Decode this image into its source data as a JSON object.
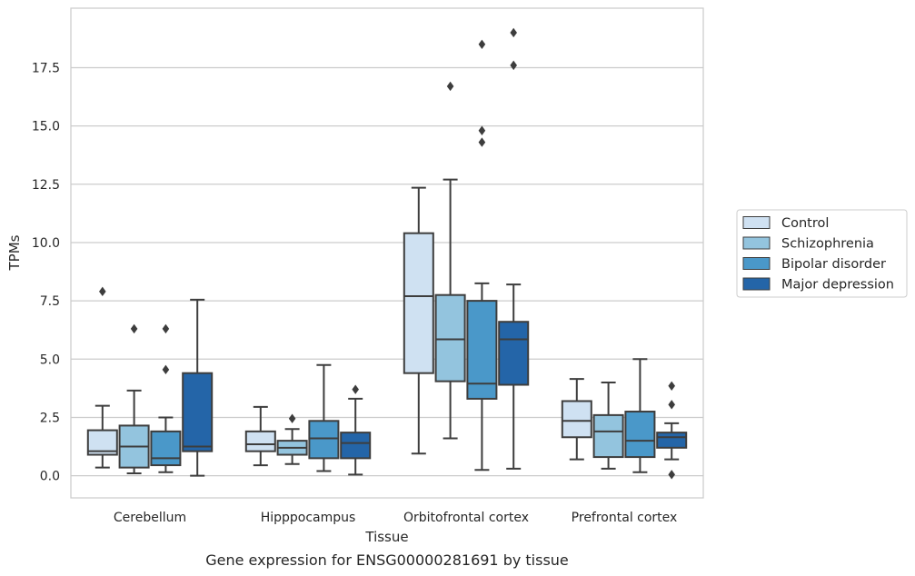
{
  "chart_data": {
    "type": "box",
    "xlabel": "Tissue",
    "ylabel": "TPMs",
    "caption": "Gene expression for ENSG00000281691 by tissue",
    "ylim": [
      -0.95,
      20.05
    ],
    "yticks": [
      0.0,
      2.5,
      5.0,
      7.5,
      10.0,
      12.5,
      15.0,
      17.5
    ],
    "ytick_labels": [
      "0.0",
      "2.5",
      "5.0",
      "7.5",
      "10.0",
      "12.5",
      "15.0",
      "17.5"
    ],
    "grid": "horizontal",
    "legend_position": "right",
    "categories": [
      "Cerebellum",
      "Hipppocampus",
      "Orbitofrontal cortex",
      "Prefrontal cortex"
    ],
    "series": [
      {
        "name": "Control",
        "color": "#cfe1f2",
        "boxes": [
          {
            "whislo": 0.35,
            "q1": 0.9,
            "median": 1.05,
            "q3": 1.95,
            "whishi": 3.0,
            "fliers": [
              7.9
            ]
          },
          {
            "whislo": 0.45,
            "q1": 1.05,
            "median": 1.35,
            "q3": 1.9,
            "whishi": 2.95,
            "fliers": []
          },
          {
            "whislo": 0.95,
            "q1": 4.4,
            "median": 7.7,
            "q3": 10.4,
            "whishi": 12.35,
            "fliers": []
          },
          {
            "whislo": 0.7,
            "q1": 1.65,
            "median": 2.35,
            "q3": 3.2,
            "whishi": 4.15,
            "fliers": []
          }
        ]
      },
      {
        "name": "Schizophrenia",
        "color": "#93c4de",
        "boxes": [
          {
            "whislo": 0.1,
            "q1": 0.35,
            "median": 1.25,
            "q3": 2.15,
            "whishi": 3.65,
            "fliers": [
              6.3
            ]
          },
          {
            "whislo": 0.5,
            "q1": 0.9,
            "median": 1.2,
            "q3": 1.5,
            "whishi": 2.0,
            "fliers": [
              2.45
            ]
          },
          {
            "whislo": 1.6,
            "q1": 4.05,
            "median": 5.85,
            "q3": 7.75,
            "whishi": 12.7,
            "fliers": [
              16.7
            ]
          },
          {
            "whislo": 0.3,
            "q1": 0.8,
            "median": 1.9,
            "q3": 2.6,
            "whishi": 4.0,
            "fliers": []
          }
        ]
      },
      {
        "name": "Bipolar disorder",
        "color": "#4a98c9",
        "boxes": [
          {
            "whislo": 0.15,
            "q1": 0.45,
            "median": 0.75,
            "q3": 1.9,
            "whishi": 2.5,
            "fliers": [
              4.55,
              6.3
            ]
          },
          {
            "whislo": 0.2,
            "q1": 0.75,
            "median": 1.6,
            "q3": 2.35,
            "whishi": 4.75,
            "fliers": []
          },
          {
            "whislo": 0.25,
            "q1": 3.3,
            "median": 3.95,
            "q3": 7.5,
            "whishi": 8.25,
            "fliers": [
              14.3,
              14.8,
              18.5
            ]
          },
          {
            "whislo": 0.15,
            "q1": 0.8,
            "median": 1.5,
            "q3": 2.75,
            "whishi": 5.0,
            "fliers": []
          }
        ]
      },
      {
        "name": "Major depression",
        "color": "#2465a8",
        "boxes": [
          {
            "whislo": 0.0,
            "q1": 1.05,
            "median": 1.25,
            "q3": 4.4,
            "whishi": 7.55,
            "fliers": []
          },
          {
            "whislo": 0.05,
            "q1": 0.75,
            "median": 1.4,
            "q3": 1.85,
            "whishi": 3.3,
            "fliers": [
              3.7
            ]
          },
          {
            "whislo": 0.3,
            "q1": 3.9,
            "median": 5.85,
            "q3": 6.6,
            "whishi": 8.2,
            "fliers": [
              17.6,
              19.0
            ]
          },
          {
            "whislo": 0.7,
            "q1": 1.2,
            "median": 1.65,
            "q3": 1.85,
            "whishi": 2.25,
            "fliers": [
              0.05,
              3.05,
              3.85
            ]
          }
        ]
      }
    ]
  }
}
